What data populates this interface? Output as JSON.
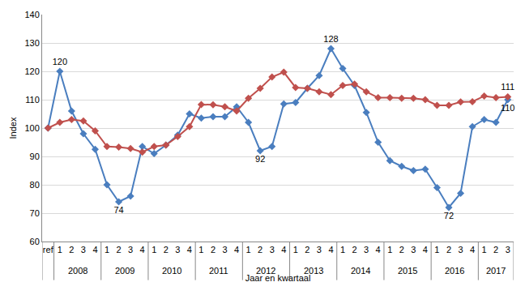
{
  "chart_data": {
    "type": "line",
    "x_title": "Jaar en kwartaal",
    "y_title": "Index",
    "categories": [
      "ref",
      "1",
      "2",
      "3",
      "4",
      "1",
      "2",
      "3",
      "4",
      "1",
      "2",
      "3",
      "4",
      "1",
      "2",
      "3",
      "4",
      "1",
      "2",
      "3",
      "4",
      "1",
      "2",
      "3",
      "4",
      "1",
      "2",
      "3",
      "4",
      "1",
      "2",
      "3",
      "4",
      "1",
      "2",
      "3",
      "4",
      "1",
      "2",
      "3"
    ],
    "groups": [
      null,
      "2008",
      "2008",
      "2008",
      "2008",
      "2009",
      "2009",
      "2009",
      "2009",
      "2010",
      "2010",
      "2010",
      "2010",
      "2011",
      "2011",
      "2011",
      "2011",
      "2012",
      "2012",
      "2012",
      "2012",
      "2013",
      "2013",
      "2013",
      "2013",
      "2014",
      "2014",
      "2014",
      "2014",
      "2015",
      "2015",
      "2015",
      "2015",
      "2016",
      "2016",
      "2016",
      "2016",
      "2017",
      "2017",
      "2017"
    ],
    "series": [
      {
        "color": "#4a7ebf",
        "marker": "diamond",
        "values": [
          100,
          120,
          106,
          98,
          92.5,
          80,
          74,
          76,
          93.5,
          91,
          94,
          97.5,
          105,
          103.5,
          104,
          104,
          107.5,
          102,
          92,
          93.5,
          108.5,
          109,
          114,
          118.5,
          128,
          121,
          115,
          105.5,
          95,
          88.5,
          86.5,
          85,
          85.5,
          79,
          72,
          77,
          100.5,
          103,
          102,
          110
        ],
        "value_labels": [
          null,
          "120",
          null,
          null,
          null,
          null,
          "74",
          null,
          null,
          null,
          null,
          null,
          null,
          null,
          null,
          null,
          null,
          null,
          "92",
          null,
          null,
          null,
          null,
          null,
          "128",
          null,
          null,
          null,
          null,
          null,
          null,
          null,
          null,
          null,
          "72",
          null,
          null,
          null,
          null,
          "110"
        ]
      },
      {
        "color": "#c0504d",
        "marker": "diamond",
        "values": [
          100,
          102,
          103,
          102.5,
          99,
          93.5,
          93.3,
          92.8,
          91.5,
          93.5,
          94,
          97,
          100.5,
          108.3,
          108.2,
          107.5,
          106,
          110.5,
          114,
          118,
          119.7,
          114.3,
          114,
          112.8,
          111.8,
          115,
          115.5,
          112.8,
          110.7,
          110.7,
          110.5,
          110.5,
          110,
          108,
          108,
          109.2,
          109.3,
          111.3,
          110.7,
          111
        ],
        "value_labels": [
          null,
          null,
          null,
          null,
          null,
          null,
          null,
          null,
          null,
          null,
          null,
          null,
          null,
          null,
          null,
          null,
          null,
          null,
          null,
          null,
          null,
          null,
          null,
          null,
          null,
          null,
          null,
          null,
          null,
          null,
          null,
          null,
          null,
          null,
          null,
          null,
          null,
          null,
          null,
          "111"
        ]
      }
    ],
    "ylim": [
      60,
      140
    ],
    "yticks": [
      60,
      70,
      80,
      90,
      100,
      110,
      120,
      130,
      140
    ],
    "grid": true,
    "data_labels": true
  }
}
